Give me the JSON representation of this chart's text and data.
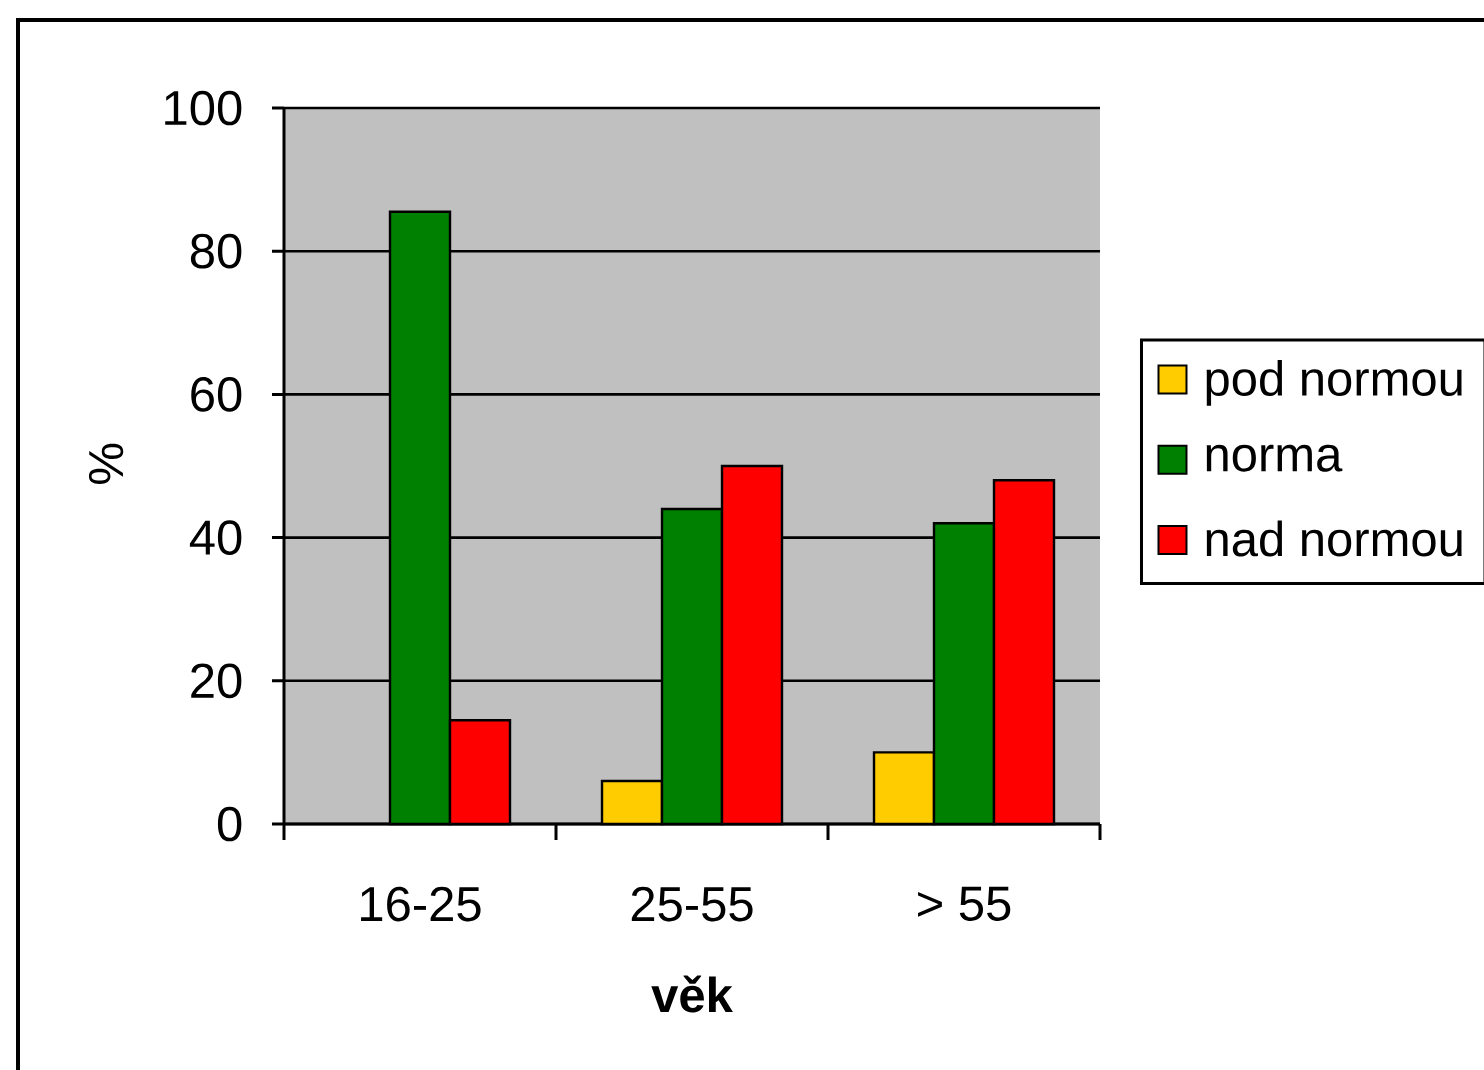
{
  "chart_data": {
    "type": "bar",
    "xlabel": "věk",
    "ylabel": "%",
    "categories": [
      "16-25",
      "25-55",
      "> 55"
    ],
    "series": [
      {
        "name": "pod normou",
        "color": "#ffcc00",
        "values": [
          null,
          6,
          10
        ]
      },
      {
        "name": "norma",
        "color": "#008000",
        "values": [
          85.5,
          44,
          42
        ]
      },
      {
        "name": "nad normou",
        "color": "#ff0000",
        "values": [
          14.5,
          50,
          48
        ]
      }
    ],
    "ylim": [
      0,
      100
    ],
    "yticks": [
      0,
      20,
      40,
      60,
      80,
      100
    ],
    "grid": "y",
    "legend": "right"
  }
}
